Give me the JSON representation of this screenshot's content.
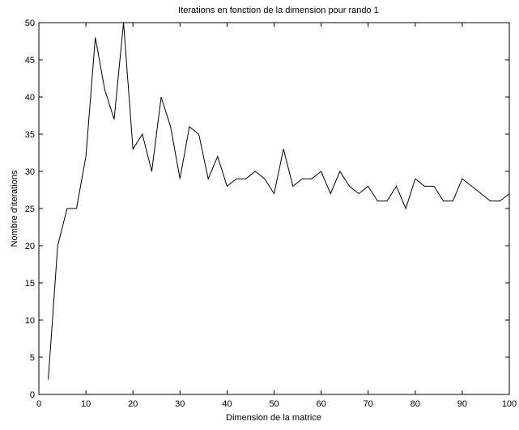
{
  "chart_data": {
    "type": "line",
    "title": "Iterations en fonction de la dimension pour rando 1",
    "xlabel": "Dimension de la matrice",
    "ylabel": "Nombre d'iterations",
    "xlim": [
      0,
      100
    ],
    "ylim": [
      0,
      50
    ],
    "xticks": [
      0,
      10,
      20,
      30,
      40,
      50,
      60,
      70,
      80,
      90,
      100
    ],
    "yticks": [
      0,
      5,
      10,
      15,
      20,
      25,
      30,
      35,
      40,
      45,
      50
    ],
    "grid": false,
    "line_color": "#000000",
    "series": [
      {
        "x": [
          2,
          4,
          6,
          8,
          10,
          12,
          14,
          16,
          18,
          20,
          22,
          24,
          26,
          28,
          30,
          32,
          34,
          36,
          38,
          40,
          42,
          44,
          46,
          48,
          50,
          52,
          54,
          56,
          58,
          60,
          62,
          64,
          66,
          68,
          70,
          72,
          74,
          76,
          78,
          80,
          82,
          84,
          86,
          88,
          90,
          92,
          94,
          96,
          98,
          100
        ],
        "values": [
          2,
          20,
          25,
          25,
          32,
          48,
          41,
          37,
          50,
          33,
          35,
          30,
          40,
          36,
          29,
          36,
          35,
          29,
          32,
          28,
          29,
          29,
          30,
          29,
          27,
          33,
          28,
          29,
          29,
          30,
          27,
          30,
          28,
          27,
          28,
          26,
          26,
          28,
          25,
          29,
          28,
          28,
          26,
          26,
          29,
          28,
          27,
          26,
          26,
          27
        ]
      }
    ]
  }
}
